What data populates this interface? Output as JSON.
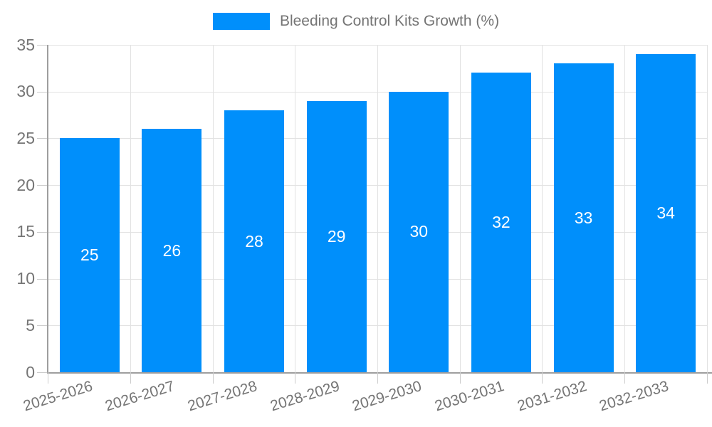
{
  "legend": {
    "label": "Bleeding Control Kits Growth (%)"
  },
  "chart_data": {
    "type": "bar",
    "title": "Bleeding Control Kits Growth (%)",
    "categories": [
      "2025-2026",
      "2026-2027",
      "2027-2028",
      "2028-2029",
      "2029-2030",
      "2030-2031",
      "2031-2032",
      "2032-2033"
    ],
    "values": [
      25,
      26,
      28,
      29,
      30,
      32,
      33,
      34
    ],
    "value_labels": [
      "25",
      "26",
      "28",
      "29",
      "30",
      "32",
      "33",
      "34"
    ],
    "xlabel": "",
    "ylabel": "",
    "ylim": [
      0,
      35
    ],
    "yticks": [
      0,
      5,
      10,
      15,
      20,
      25,
      30,
      35
    ],
    "grid": true,
    "legend_position": "top",
    "bar_color": "#008FFB",
    "value_label_color": "#ffffff",
    "axis_text_color": "#757575"
  }
}
